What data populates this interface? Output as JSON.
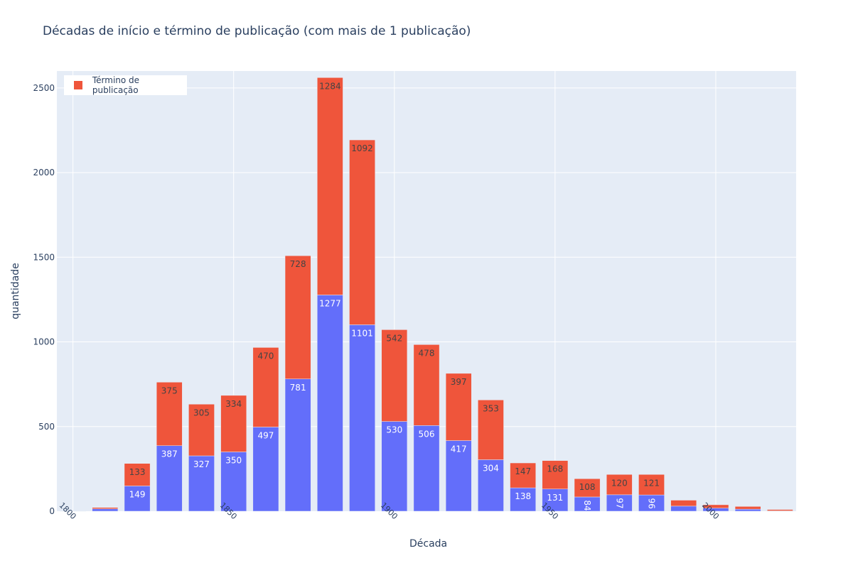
{
  "title": "Décadas de início e término de publicação (com mais de 1 publicação)",
  "chart_data": {
    "type": "bar",
    "barmode": "stack",
    "title": "Décadas de início e término de publicação (com mais de 1 publicação)",
    "xlabel": "Década",
    "ylabel": "quantidade",
    "x": [
      1800,
      1810,
      1820,
      1830,
      1840,
      1850,
      1860,
      1870,
      1880,
      1890,
      1900,
      1910,
      1920,
      1930,
      1940,
      1950,
      1960,
      1970,
      1980,
      1990,
      2000,
      2010,
      2020
    ],
    "series": [
      {
        "values": [
          2,
          14,
          149,
          387,
          327,
          350,
          497,
          781,
          1277,
          1101,
          530,
          506,
          417,
          304,
          138,
          131,
          84,
          97,
          96,
          30,
          18,
          12,
          2
        ],
        "value_labels": [
          "",
          "",
          "149",
          "387",
          "327",
          "350",
          "497",
          "781",
          "1277",
          "1101",
          "530",
          "506",
          "417",
          "304",
          "138",
          "131",
          "84",
          "97",
          "96",
          "",
          "",
          "",
          ""
        ],
        "color": "#636efa"
      },
      {
        "name": "Término de publicação",
        "values": [
          0,
          8,
          133,
          375,
          305,
          334,
          470,
          728,
          1284,
          1092,
          542,
          478,
          397,
          353,
          147,
          168,
          108,
          120,
          121,
          35,
          20,
          16,
          8
        ],
        "value_labels": [
          "",
          "",
          "133",
          "375",
          "305",
          "334",
          "470",
          "728",
          "1284",
          "1092",
          "542",
          "478",
          "397",
          "353",
          "147",
          "168",
          "108",
          "120",
          "121",
          "",
          "",
          "",
          ""
        ],
        "color": "#ef553b"
      }
    ],
    "xlim": [
      1795,
      2025
    ],
    "ylim": [
      0,
      2600
    ],
    "xticks": [
      "1800",
      "1850",
      "1900",
      "1950",
      "2000"
    ],
    "yticks": [
      "0",
      "500",
      "1000",
      "1500",
      "2000",
      "2500"
    ],
    "legend_position": "top-left",
    "grid": true,
    "plot_bg": "#e5ecf6"
  }
}
